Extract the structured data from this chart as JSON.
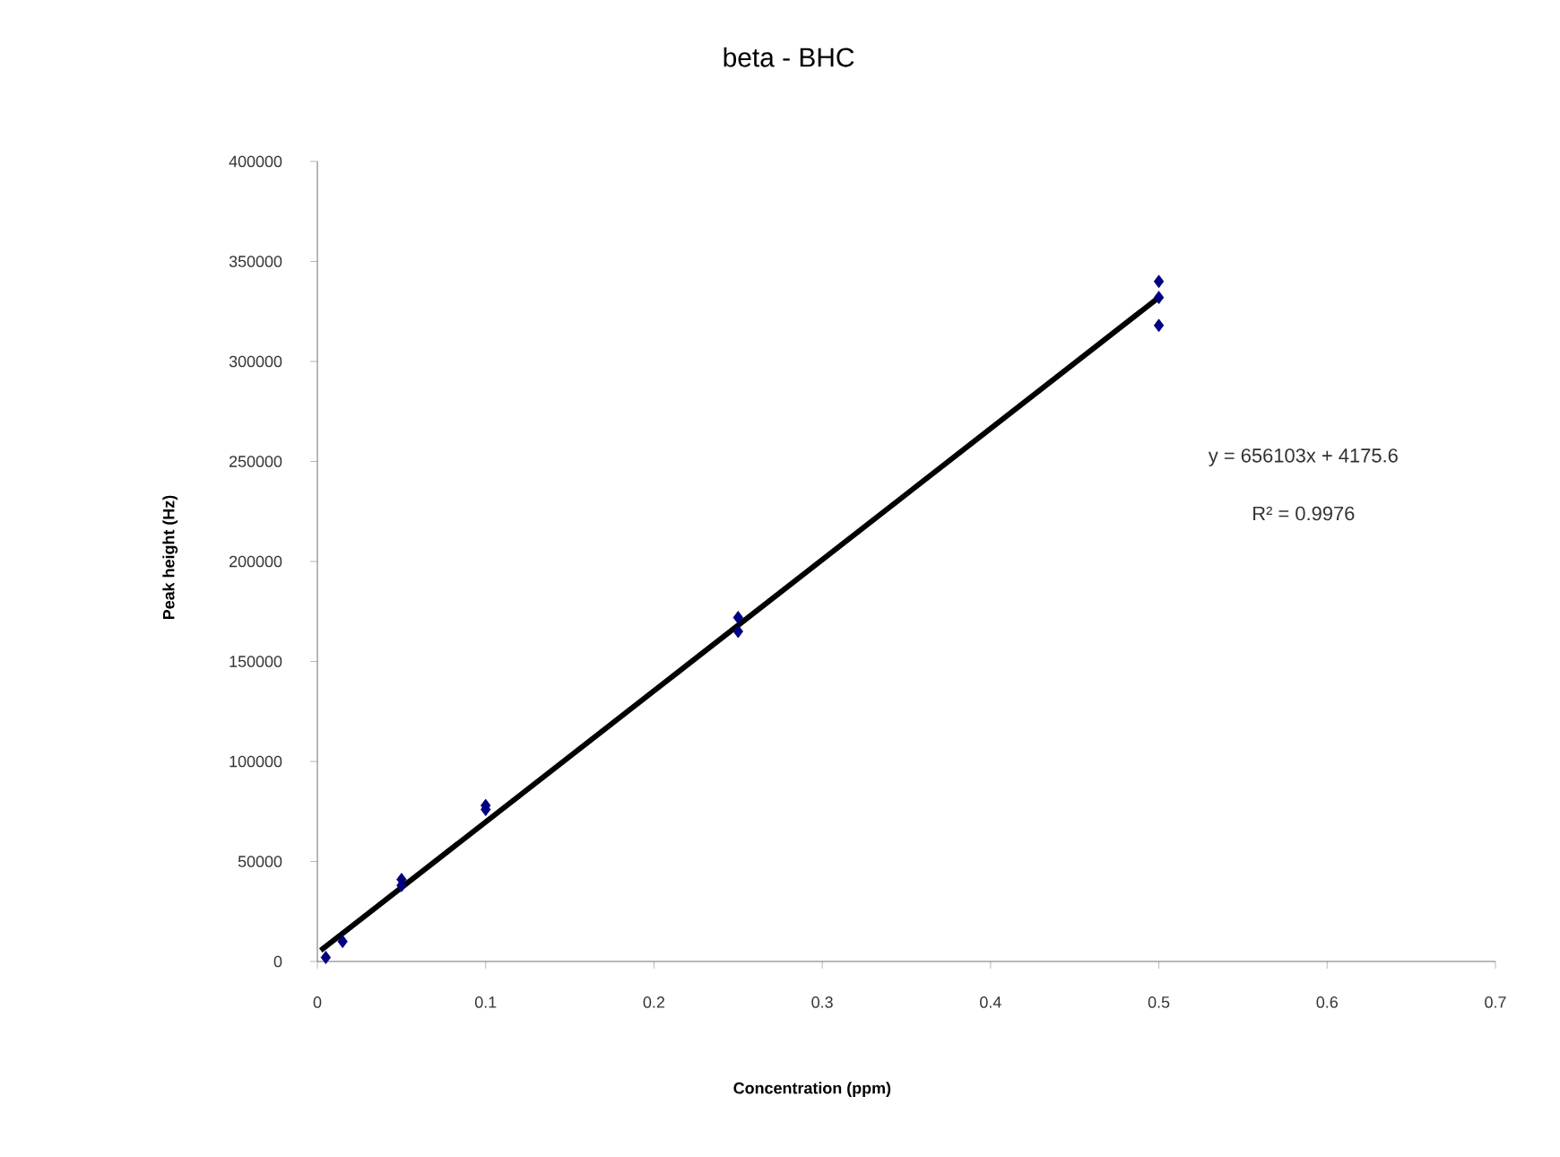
{
  "chart_data": {
    "type": "scatter",
    "title": "beta - BHC",
    "xlabel": "**Concentration    (ppm)**",
    "ylabel": "**Peak height (Hz)**",
    "series": [
      {
        "type": "scatter",
        "color": "#000080",
        "marker": "diamond",
        "x": [
          0.005,
          0.015,
          0.05,
          0.05,
          0.1,
          0.1,
          0.25,
          0.25,
          0.5,
          0.5,
          0.5
        ],
        "values": [
          2000,
          10000,
          41000,
          38000,
          78000,
          76000,
          172000,
          165000,
          340000,
          332000,
          318000
        ]
      },
      {
        "type": "line",
        "color": "#000000",
        "marker": "none",
        "line_style": "solid",
        "x": [
          0.002,
          0.5
        ],
        "values": [
          5500,
          332000
        ]
      }
    ],
    "xlim": [
      0,
      0.7
    ],
    "xticks": [
      0,
      0.1,
      0.2,
      0.3,
      0.4,
      0.5,
      0.6,
      0.7
    ],
    "ylim": [
      0,
      400000
    ],
    "yticks": [
      0,
      50000,
      100000,
      150000,
      200000,
      250000,
      300000,
      350000,
      400000
    ],
    "grid": false,
    "legend": false,
    "annotations": [
      "y = 656103x + 4175.6",
      "R² = 0.9976"
    ]
  }
}
